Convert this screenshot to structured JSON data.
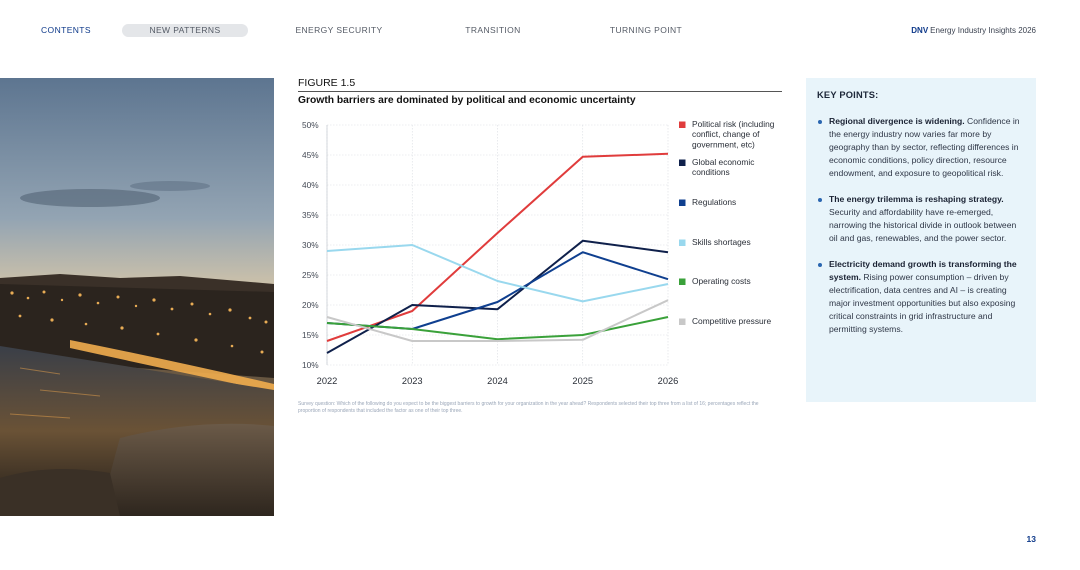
{
  "nav": {
    "items": [
      {
        "label": "CONTENTS"
      },
      {
        "label": "NEW PATTERNS"
      },
      {
        "label": "ENERGY SECURITY"
      },
      {
        "label": "TRANSITION"
      },
      {
        "label": "TURNING POINT"
      }
    ],
    "brand_mark": "DNV",
    "brand_text": "Energy Industry Insights 2026"
  },
  "figure": {
    "label": "FIGURE 1.5",
    "title": "Growth barriers are dominated by political and economic uncertainty",
    "footnote": "Survey question: Which of the following do you expect to be the biggest barriers to growth for your organization in the year ahead? Respondents selected their top three from a list of 16; percentages reflect the proportion of respondents that included the factor as one of their top three."
  },
  "chart_data": {
    "type": "line",
    "title": "Growth barriers are dominated by political and economic uncertainty",
    "x": [
      2022,
      2023,
      2024,
      2025,
      2026
    ],
    "xlabel": "",
    "ylabel": "",
    "ylim": [
      10,
      50
    ],
    "yticks": [
      10,
      15,
      20,
      25,
      30,
      35,
      40,
      45,
      50
    ],
    "ytick_labels": [
      "10%",
      "15%",
      "20%",
      "25%",
      "30%",
      "35%",
      "40%",
      "45%",
      "50%"
    ],
    "grid": true,
    "legend_position": "right",
    "series": [
      {
        "name": "Political risk (including conflict, change of government, etc)",
        "legend_lines": [
          "Political risk (including",
          "conflict, change of",
          "government, etc)"
        ],
        "color": "#e03c3c",
        "values": [
          14,
          19,
          32,
          44.7,
          45.2
        ]
      },
      {
        "name": "Global economic conditions",
        "legend_lines": [
          "Global economic",
          "conditions"
        ],
        "color": "#0f204b",
        "values": [
          12,
          20,
          19.3,
          30.7,
          28.8
        ]
      },
      {
        "name": "Regulations",
        "legend_lines": [
          "Regulations"
        ],
        "color": "#0f3f8f",
        "values": [
          17,
          16,
          20.5,
          28.8,
          24.3
        ]
      },
      {
        "name": "Skills shortages",
        "legend_lines": [
          "Skills shortages"
        ],
        "color": "#99d8ee",
        "values": [
          29,
          30,
          24,
          20.6,
          23.5
        ]
      },
      {
        "name": "Operating costs",
        "legend_lines": [
          "Operating costs"
        ],
        "color": "#3aa13a",
        "values": [
          17,
          16,
          14.3,
          15,
          18
        ]
      },
      {
        "name": "Competitive pressure",
        "legend_lines": [
          "Competitive pressure"
        ],
        "color": "#c8c8c8",
        "values": [
          18,
          14,
          14,
          14.2,
          20.8
        ]
      }
    ]
  },
  "key_points": {
    "title": "KEY POINTS:",
    "items": [
      {
        "bold": "Regional divergence is widening.",
        "text": "Confidence in the energy industry now varies far more by geography than by sector, reflecting differences in economic conditions, policy direction, resource endowment, and exposure to geopolitical risk."
      },
      {
        "bold": "The energy trilemma is reshaping strategy.",
        "text": "Security and affordability have re-emerged, narrowing the historical divide in outlook between oil and gas, renewables, and the power sector."
      },
      {
        "bold": "Electricity demand growth is transforming the system.",
        "text": "Rising power consumption – driven by electrification, data centres and AI – is creating major investment opportunities but also exposing critical constraints in grid infrastructure and permitting systems."
      }
    ]
  },
  "page": {
    "number": "13"
  }
}
